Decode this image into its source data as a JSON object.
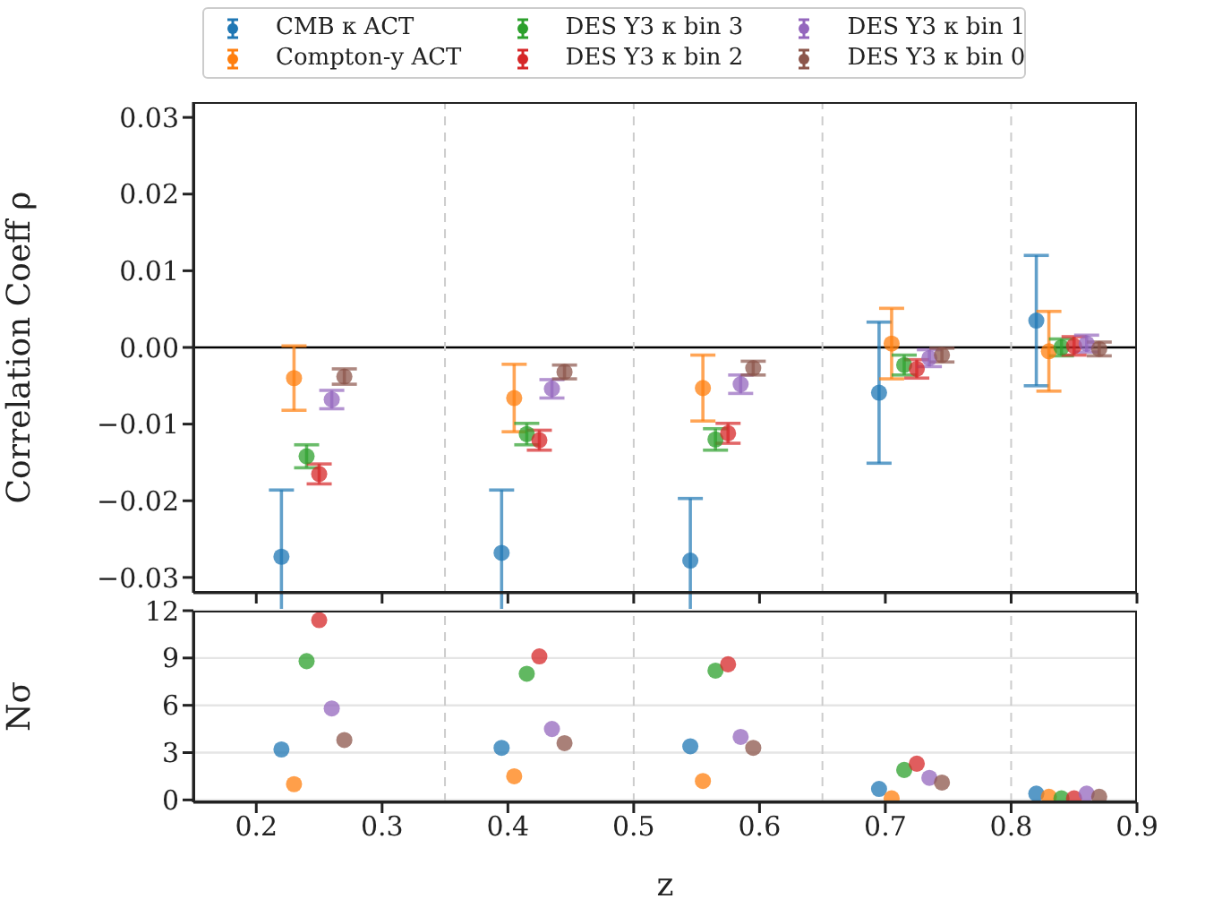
{
  "chart_data": [
    {
      "type": "scatter",
      "ylabel": "Correlation Coeff ρ",
      "xlim": [
        0.15,
        0.9
      ],
      "xticks": [
        0.2,
        0.3,
        0.4,
        0.5,
        0.6,
        0.7,
        0.8,
        0.9
      ],
      "ylim": [
        -0.032,
        0.032
      ],
      "yticks": [
        -0.03,
        -0.02,
        -0.01,
        {
          "value": 0,
          "label": "0.00"
        },
        0.01,
        0.02,
        0.03
      ],
      "tick_labels": "y",
      "grid": false,
      "legend": "top",
      "marker": "circle",
      "ref_lines": [
        {
          "axis": "y",
          "value": 0,
          "color": "#000000",
          "line_style": "solid"
        },
        {
          "axis": "x",
          "value": 0.35,
          "color": "#cccccc",
          "line_style": "dashed"
        },
        {
          "axis": "x",
          "value": 0.5,
          "color": "#cccccc",
          "line_style": "dashed"
        },
        {
          "axis": "x",
          "value": 0.65,
          "color": "#cccccc",
          "line_style": "dashed"
        },
        {
          "axis": "x",
          "value": 0.8,
          "color": "#cccccc",
          "line_style": "dashed"
        }
      ],
      "series": [
        {
          "name": "CMB κ ACT",
          "color": "#1f77b4",
          "x": [
            0.22,
            0.395,
            0.545,
            0.695,
            0.82
          ],
          "values": [
            -0.0273,
            -0.0268,
            -0.0278,
            -0.0059,
            0.0035
          ],
          "errors": [
            0.0087,
            0.0082,
            0.0081,
            0.0092,
            0.0085
          ]
        },
        {
          "name": "Compton-y ACT",
          "color": "#ff7f0e",
          "x": [
            0.23,
            0.405,
            0.555,
            0.705,
            0.83
          ],
          "values": [
            -0.004,
            -0.0066,
            -0.0053,
            0.0005,
            -0.0005
          ],
          "errors": [
            0.0042,
            0.0044,
            0.0043,
            0.0046,
            0.0052
          ]
        },
        {
          "name": "DES Y3 κ bin 3",
          "color": "#2ca02c",
          "x": [
            0.24,
            0.415,
            0.565,
            0.715,
            0.84
          ],
          "values": [
            -0.0142,
            -0.0113,
            -0.012,
            -0.0023,
            0.0
          ],
          "errors": [
            0.0015,
            0.0014,
            0.0014,
            0.0013,
            0.0011
          ]
        },
        {
          "name": "DES Y3 κ bin 2",
          "color": "#d62728",
          "x": [
            0.25,
            0.425,
            0.575,
            0.725,
            0.85
          ],
          "values": [
            -0.0165,
            -0.0121,
            -0.0112,
            -0.0028,
            0.0002
          ],
          "errors": [
            0.0013,
            0.0013,
            0.0013,
            0.0012,
            0.0012
          ]
        },
        {
          "name": "DES Y3 κ bin 1",
          "color": "#9467bd",
          "x": [
            0.26,
            0.435,
            0.585,
            0.735,
            0.86
          ],
          "values": [
            -0.0068,
            -0.0054,
            -0.0048,
            -0.0014,
            0.0005
          ],
          "errors": [
            0.0012,
            0.0012,
            0.0012,
            0.0011,
            0.0011
          ]
        },
        {
          "name": "DES Y3 κ bin 0",
          "color": "#8c564b",
          "x": [
            0.27,
            0.445,
            0.595,
            0.745,
            0.87
          ],
          "values": [
            -0.0038,
            -0.0032,
            -0.0027,
            -0.001,
            -0.0002
          ],
          "errors": [
            0.001,
            0.0009,
            0.0009,
            0.0009,
            0.0009
          ]
        }
      ]
    },
    {
      "type": "scatter",
      "xlabel": "z",
      "ylabel": "Nσ",
      "xlim": [
        0.15,
        0.9
      ],
      "xticks": [
        0.2,
        0.3,
        0.4,
        0.5,
        0.6,
        0.7,
        0.8,
        0.9
      ],
      "ylim": [
        -0.15,
        12
      ],
      "yticks": [
        0,
        3,
        6,
        9,
        12
      ],
      "grid": "y",
      "marker": "circle",
      "ref_lines": [
        {
          "axis": "x",
          "value": 0.35,
          "color": "#cccccc",
          "line_style": "dashed"
        },
        {
          "axis": "x",
          "value": 0.5,
          "color": "#cccccc",
          "line_style": "dashed"
        },
        {
          "axis": "x",
          "value": 0.65,
          "color": "#cccccc",
          "line_style": "dashed"
        },
        {
          "axis": "x",
          "value": 0.8,
          "color": "#cccccc",
          "line_style": "dashed"
        }
      ],
      "series": [
        {
          "color": "#1f77b4",
          "x": [
            0.22,
            0.395,
            0.545,
            0.695,
            0.82
          ],
          "values": [
            3.2,
            3.3,
            3.4,
            0.7,
            0.4
          ]
        },
        {
          "color": "#ff7f0e",
          "x": [
            0.23,
            0.405,
            0.555,
            0.705,
            0.83
          ],
          "values": [
            1.0,
            1.5,
            1.2,
            0.1,
            0.2
          ]
        },
        {
          "color": "#2ca02c",
          "x": [
            0.24,
            0.415,
            0.565,
            0.715,
            0.84
          ],
          "values": [
            8.8,
            8.0,
            8.2,
            1.9,
            0.1
          ]
        },
        {
          "color": "#d62728",
          "x": [
            0.25,
            0.425,
            0.575,
            0.725,
            0.85
          ],
          "values": [
            11.4,
            9.1,
            8.6,
            2.3,
            0.1
          ]
        },
        {
          "color": "#9467bd",
          "x": [
            0.26,
            0.435,
            0.585,
            0.735,
            0.86
          ],
          "values": [
            5.8,
            4.5,
            4.0,
            1.4,
            0.4
          ]
        },
        {
          "color": "#8c564b",
          "x": [
            0.27,
            0.445,
            0.595,
            0.745,
            0.87
          ],
          "values": [
            3.8,
            3.6,
            3.3,
            1.1,
            0.2
          ]
        }
      ]
    }
  ]
}
